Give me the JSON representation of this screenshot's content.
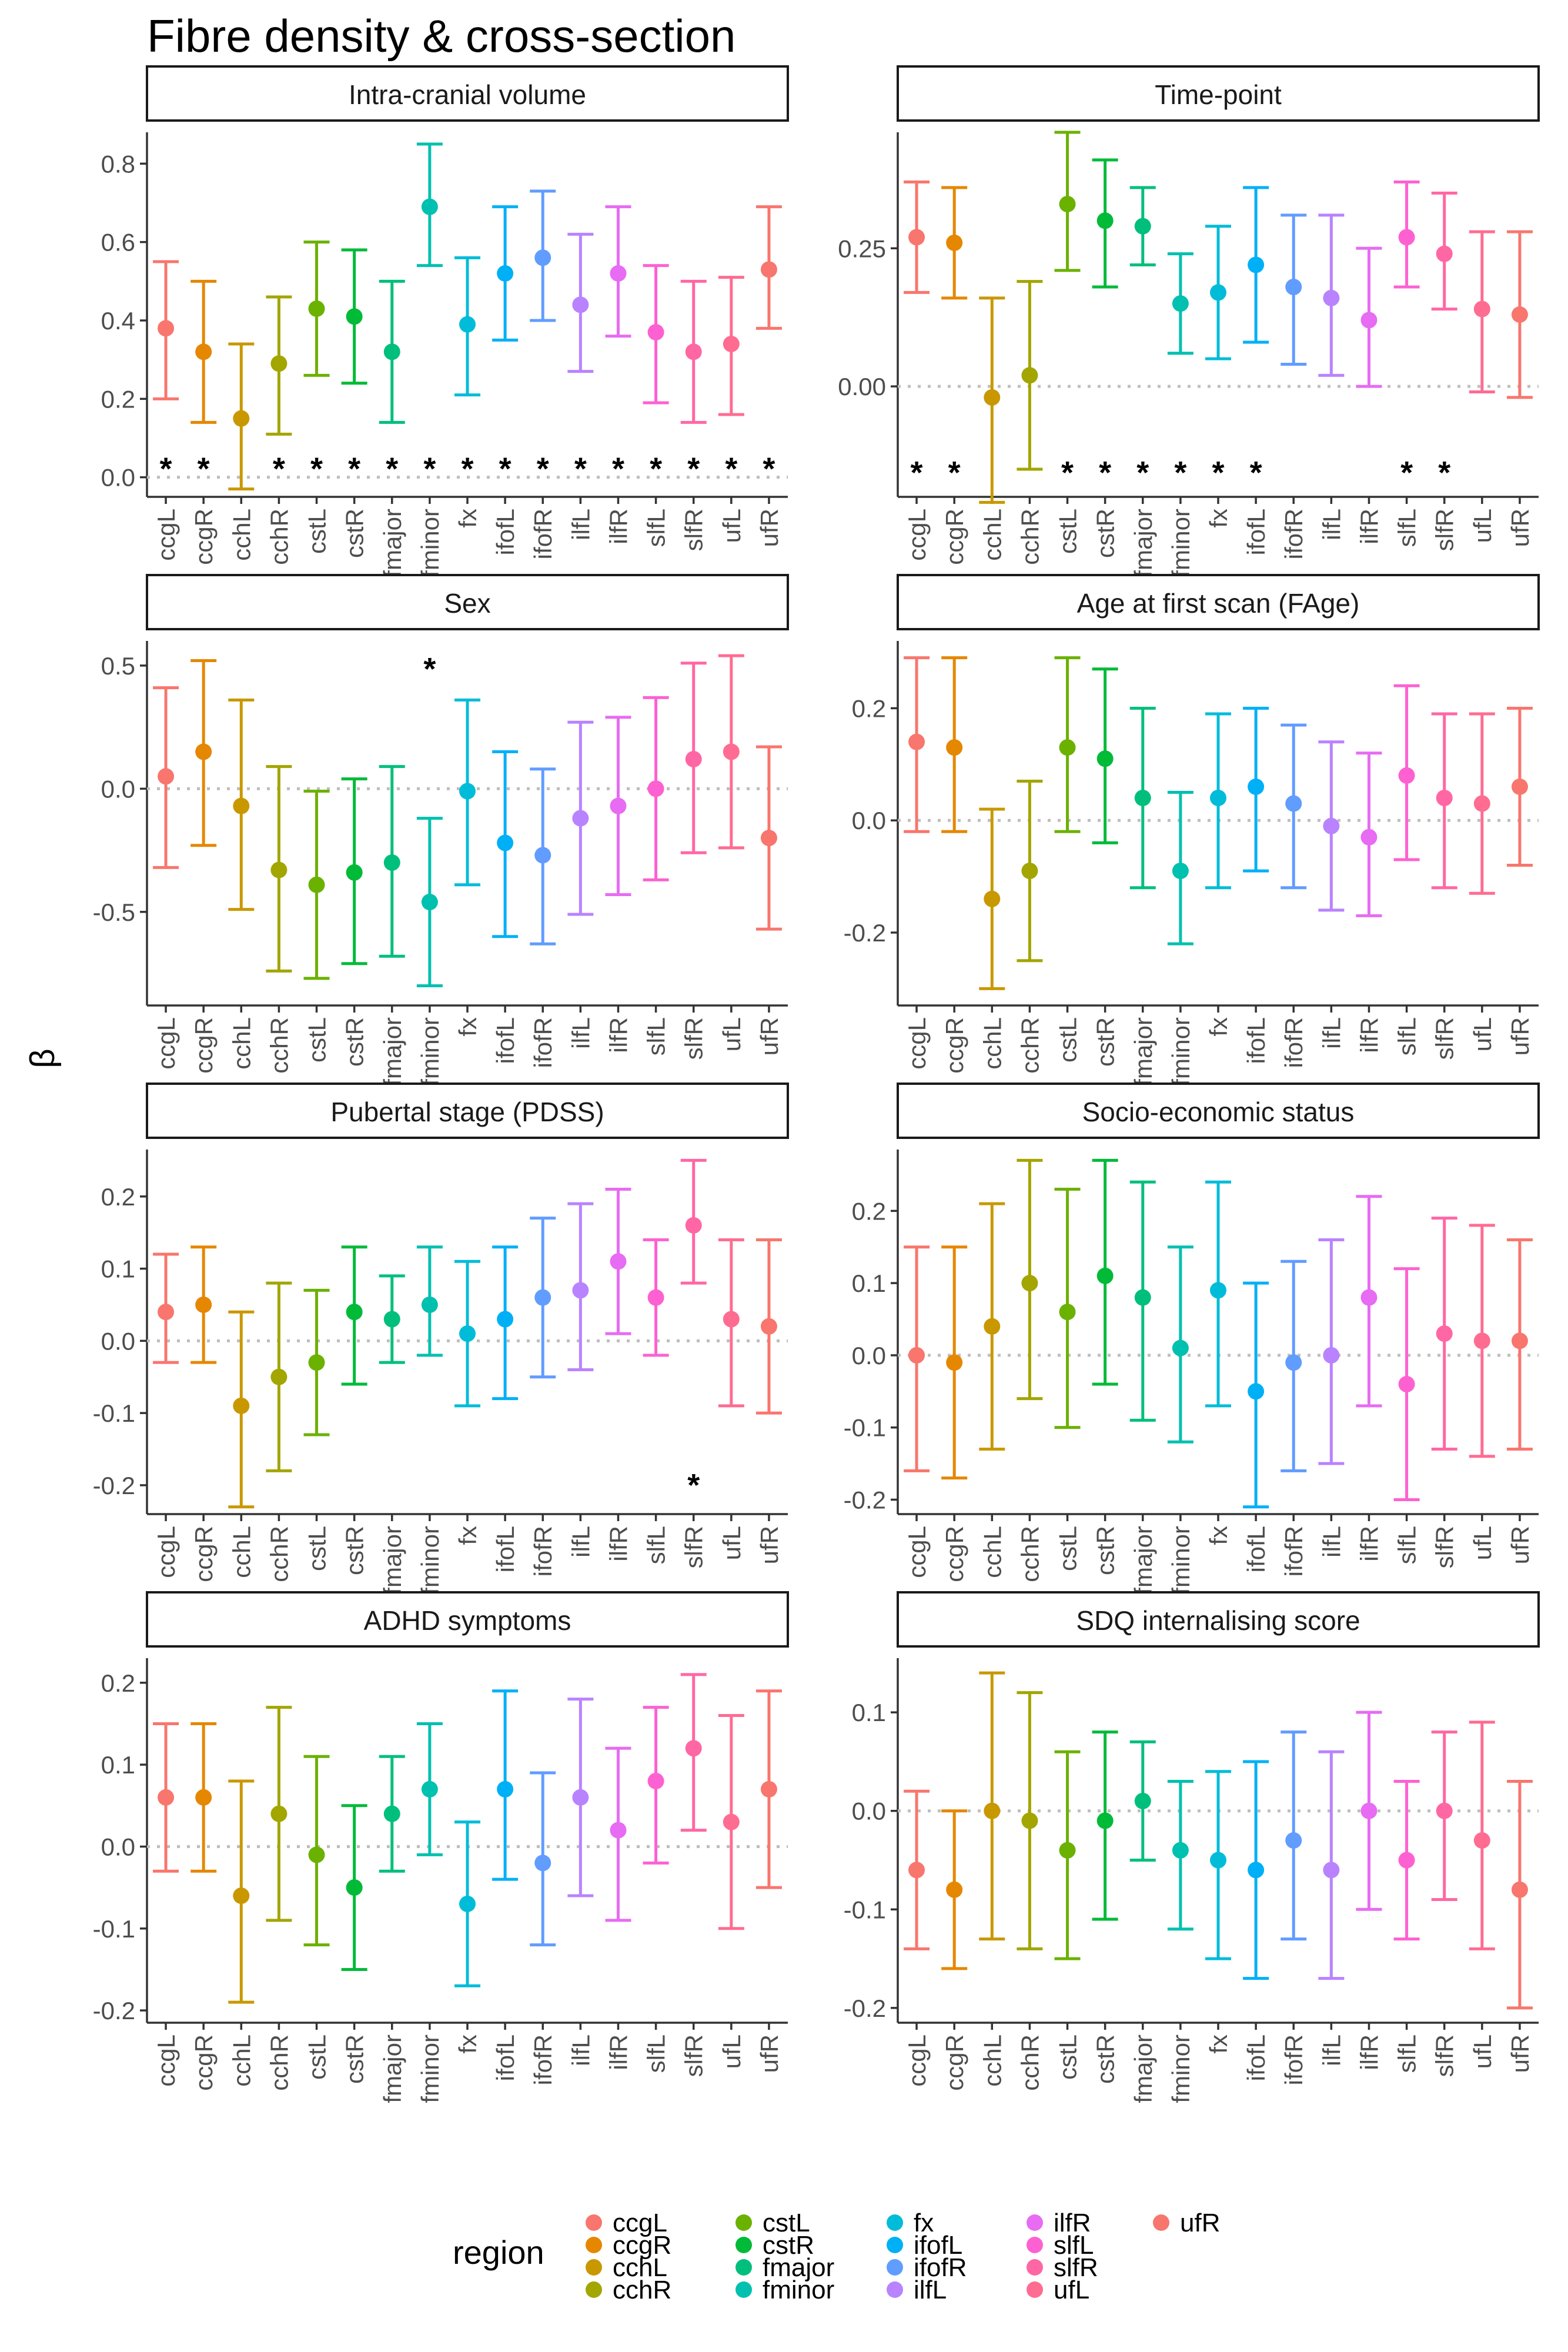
{
  "figure": {
    "title": "Fibre density & cross-section",
    "ylabel": "β",
    "star": "*",
    "legend_title": "region"
  },
  "regions": [
    "ccgL",
    "ccgR",
    "cchL",
    "cchR",
    "cstL",
    "cstR",
    "fmajor",
    "fminor",
    "fx",
    "ifofL",
    "ifofR",
    "ilfL",
    "ilfR",
    "slfL",
    "slfR",
    "ufL",
    "ufR"
  ],
  "colors": [
    "#F8766D",
    "#E58700",
    "#C99800",
    "#A3A500",
    "#6BB100",
    "#00BA38",
    "#00BF7D",
    "#00C0AF",
    "#00BCD8",
    "#00B0F6",
    "#619CFF",
    "#B983FF",
    "#E76BF3",
    "#FD61D1",
    "#FF67A4",
    "#FF6C91",
    "#F8766D"
  ],
  "chart_data": [
    {
      "type": "errorbar",
      "title": "Intra-cranial volume",
      "ylim": [
        -0.05,
        0.88
      ],
      "ticks": [
        0.0,
        0.2,
        0.4,
        0.6,
        0.8
      ],
      "tick_labels": [
        "0.0",
        "0.2",
        "0.4",
        "0.6",
        "0.8"
      ],
      "star_value": 0.03,
      "estimate": [
        0.38,
        0.32,
        0.15,
        0.29,
        0.43,
        0.41,
        0.32,
        0.69,
        0.39,
        0.52,
        0.56,
        0.44,
        0.52,
        0.37,
        0.32,
        0.34,
        0.53
      ],
      "lower": [
        0.2,
        0.14,
        -0.03,
        0.11,
        0.26,
        0.24,
        0.14,
        0.54,
        0.21,
        0.35,
        0.4,
        0.27,
        0.36,
        0.19,
        0.14,
        0.16,
        0.38
      ],
      "upper": [
        0.55,
        0.5,
        0.34,
        0.46,
        0.6,
        0.58,
        0.5,
        0.85,
        0.56,
        0.69,
        0.73,
        0.62,
        0.69,
        0.54,
        0.5,
        0.51,
        0.69
      ],
      "significant": [
        true,
        true,
        false,
        true,
        true,
        true,
        true,
        true,
        true,
        true,
        true,
        true,
        true,
        true,
        true,
        true,
        true
      ]
    },
    {
      "type": "errorbar",
      "title": "Time-point",
      "ylim": [
        -0.2,
        0.46
      ],
      "ticks": [
        0.0,
        0.25
      ],
      "tick_labels": [
        "0.00",
        "0.25"
      ],
      "star_value": -0.15,
      "estimate": [
        0.27,
        0.26,
        -0.02,
        0.02,
        0.33,
        0.3,
        0.29,
        0.15,
        0.17,
        0.22,
        0.18,
        0.16,
        0.12,
        0.27,
        0.24,
        0.14,
        0.13
      ],
      "lower": [
        0.17,
        0.16,
        -0.21,
        -0.15,
        0.21,
        0.18,
        0.22,
        0.06,
        0.05,
        0.08,
        0.04,
        0.02,
        0.0,
        0.18,
        0.14,
        -0.01,
        -0.02
      ],
      "upper": [
        0.37,
        0.36,
        0.16,
        0.19,
        0.46,
        0.41,
        0.36,
        0.24,
        0.29,
        0.36,
        0.31,
        0.31,
        0.25,
        0.37,
        0.35,
        0.28,
        0.28
      ],
      "significant": [
        true,
        true,
        false,
        false,
        true,
        true,
        true,
        true,
        true,
        true,
        false,
        false,
        false,
        true,
        true,
        false,
        false
      ]
    },
    {
      "type": "errorbar",
      "title": "Sex",
      "ylim": [
        -0.88,
        0.6
      ],
      "ticks": [
        -0.5,
        0.0,
        0.5
      ],
      "tick_labels": [
        "-0.5",
        "0.0",
        "0.5"
      ],
      "star_value": 0.5,
      "estimate": [
        0.05,
        0.15,
        -0.07,
        -0.33,
        -0.39,
        -0.34,
        -0.3,
        -0.46,
        -0.01,
        -0.22,
        -0.27,
        -0.12,
        -0.07,
        0.0,
        0.12,
        0.15,
        -0.2
      ],
      "lower": [
        -0.32,
        -0.23,
        -0.49,
        -0.74,
        -0.77,
        -0.71,
        -0.68,
        -0.8,
        -0.39,
        -0.6,
        -0.63,
        -0.51,
        -0.43,
        -0.37,
        -0.26,
        -0.24,
        -0.57
      ],
      "upper": [
        0.41,
        0.52,
        0.36,
        0.09,
        -0.01,
        0.04,
        0.09,
        -0.12,
        0.36,
        0.15,
        0.08,
        0.27,
        0.29,
        0.37,
        0.51,
        0.54,
        0.17
      ],
      "significant": [
        false,
        false,
        false,
        false,
        false,
        false,
        false,
        true,
        false,
        false,
        false,
        false,
        false,
        false,
        false,
        false,
        false
      ]
    },
    {
      "type": "errorbar",
      "title": "Age at first scan (FAge)",
      "ylim": [
        -0.33,
        0.32
      ],
      "ticks": [
        -0.2,
        0.0,
        0.2
      ],
      "tick_labels": [
        "-0.2",
        "0.0",
        "0.2"
      ],
      "star_value": null,
      "estimate": [
        0.14,
        0.13,
        -0.14,
        -0.09,
        0.13,
        0.11,
        0.04,
        -0.09,
        0.04,
        0.06,
        0.03,
        -0.01,
        -0.03,
        0.08,
        0.04,
        0.03,
        0.06
      ],
      "lower": [
        -0.02,
        -0.02,
        -0.3,
        -0.25,
        -0.02,
        -0.04,
        -0.12,
        -0.22,
        -0.12,
        -0.09,
        -0.12,
        -0.16,
        -0.17,
        -0.07,
        -0.12,
        -0.13,
        -0.08
      ],
      "upper": [
        0.29,
        0.29,
        0.02,
        0.07,
        0.29,
        0.27,
        0.2,
        0.05,
        0.19,
        0.2,
        0.17,
        0.14,
        0.12,
        0.24,
        0.19,
        0.19,
        0.2
      ],
      "significant": [
        false,
        false,
        false,
        false,
        false,
        false,
        false,
        false,
        false,
        false,
        false,
        false,
        false,
        false,
        false,
        false,
        false
      ]
    },
    {
      "type": "errorbar",
      "title": "Pubertal stage (PDSS)",
      "ylim": [
        -0.24,
        0.265
      ],
      "ticks": [
        -0.2,
        -0.1,
        0.0,
        0.1,
        0.2
      ],
      "tick_labels": [
        "-0.2",
        "-0.1",
        "0.0",
        "0.1",
        "0.2"
      ],
      "star_value": -0.195,
      "estimate": [
        0.04,
        0.05,
        -0.09,
        -0.05,
        -0.03,
        0.04,
        0.03,
        0.05,
        0.01,
        0.03,
        0.06,
        0.07,
        0.11,
        0.06,
        0.16,
        0.03,
        0.02
      ],
      "lower": [
        -0.03,
        -0.03,
        -0.23,
        -0.18,
        -0.13,
        -0.06,
        -0.03,
        -0.02,
        -0.09,
        -0.08,
        -0.05,
        -0.04,
        0.01,
        -0.02,
        0.08,
        -0.09,
        -0.1
      ],
      "upper": [
        0.12,
        0.13,
        0.04,
        0.08,
        0.07,
        0.13,
        0.09,
        0.13,
        0.11,
        0.13,
        0.17,
        0.19,
        0.21,
        0.14,
        0.25,
        0.14,
        0.14
      ],
      "significant": [
        false,
        false,
        false,
        false,
        false,
        false,
        false,
        false,
        false,
        false,
        false,
        false,
        false,
        false,
        true,
        false,
        false
      ]
    },
    {
      "type": "errorbar",
      "title": "Socio-economic status",
      "ylim": [
        -0.22,
        0.285
      ],
      "ticks": [
        -0.2,
        -0.1,
        0.0,
        0.1,
        0.2
      ],
      "tick_labels": [
        "-0.2",
        "-0.1",
        "0.0",
        "0.1",
        "0.2"
      ],
      "star_value": null,
      "estimate": [
        0.0,
        -0.01,
        0.04,
        0.1,
        0.06,
        0.11,
        0.08,
        0.01,
        0.09,
        -0.05,
        -0.01,
        0.0,
        0.08,
        -0.04,
        0.03,
        0.02,
        0.02
      ],
      "lower": [
        -0.16,
        -0.17,
        -0.13,
        -0.06,
        -0.1,
        -0.04,
        -0.09,
        -0.12,
        -0.07,
        -0.21,
        -0.16,
        -0.15,
        -0.07,
        -0.2,
        -0.13,
        -0.14,
        -0.13
      ],
      "upper": [
        0.15,
        0.15,
        0.21,
        0.27,
        0.23,
        0.27,
        0.24,
        0.15,
        0.24,
        0.1,
        0.13,
        0.16,
        0.22,
        0.12,
        0.19,
        0.18,
        0.16
      ],
      "significant": [
        false,
        false,
        false,
        false,
        false,
        false,
        false,
        false,
        false,
        false,
        false,
        false,
        false,
        false,
        false,
        false,
        false
      ]
    },
    {
      "type": "errorbar",
      "title": "ADHD symptoms",
      "ylim": [
        -0.215,
        0.23
      ],
      "ticks": [
        -0.2,
        -0.1,
        0.0,
        0.1,
        0.2
      ],
      "tick_labels": [
        "-0.2",
        "-0.1",
        "0.0",
        "0.1",
        "0.2"
      ],
      "star_value": null,
      "estimate": [
        0.06,
        0.06,
        -0.06,
        0.04,
        -0.01,
        -0.05,
        0.04,
        0.07,
        -0.07,
        0.07,
        -0.02,
        0.06,
        0.02,
        0.08,
        0.12,
        0.03,
        0.07
      ],
      "lower": [
        -0.03,
        -0.03,
        -0.19,
        -0.09,
        -0.12,
        -0.15,
        -0.03,
        -0.01,
        -0.17,
        -0.04,
        -0.12,
        -0.06,
        -0.09,
        -0.02,
        0.02,
        -0.1,
        -0.05
      ],
      "upper": [
        0.15,
        0.15,
        0.08,
        0.17,
        0.11,
        0.05,
        0.11,
        0.15,
        0.03,
        0.19,
        0.09,
        0.18,
        0.12,
        0.17,
        0.21,
        0.16,
        0.19
      ],
      "significant": [
        false,
        false,
        false,
        false,
        false,
        false,
        false,
        false,
        false,
        false,
        false,
        false,
        false,
        false,
        false,
        false,
        false
      ]
    },
    {
      "type": "errorbar",
      "title": "SDQ internalising score",
      "ylim": [
        -0.215,
        0.155
      ],
      "ticks": [
        -0.2,
        -0.1,
        0.0,
        0.1
      ],
      "tick_labels": [
        "-0.2",
        "-0.1",
        "0.0",
        "0.1"
      ],
      "star_value": null,
      "estimate": [
        -0.06,
        -0.08,
        0.0,
        -0.01,
        -0.04,
        -0.01,
        0.01,
        -0.04,
        -0.05,
        -0.06,
        -0.03,
        -0.06,
        0.0,
        -0.05,
        0.0,
        -0.03,
        -0.08
      ],
      "lower": [
        -0.14,
        -0.16,
        -0.13,
        -0.14,
        -0.15,
        -0.11,
        -0.05,
        -0.12,
        -0.15,
        -0.17,
        -0.13,
        -0.17,
        -0.1,
        -0.13,
        -0.09,
        -0.14,
        -0.2
      ],
      "upper": [
        0.02,
        0.0,
        0.14,
        0.12,
        0.06,
        0.08,
        0.07,
        0.03,
        0.04,
        0.05,
        0.08,
        0.06,
        0.1,
        0.03,
        0.08,
        0.09,
        0.03
      ],
      "significant": [
        false,
        false,
        false,
        false,
        false,
        false,
        false,
        false,
        false,
        false,
        false,
        false,
        false,
        false,
        false,
        false,
        false
      ]
    }
  ]
}
